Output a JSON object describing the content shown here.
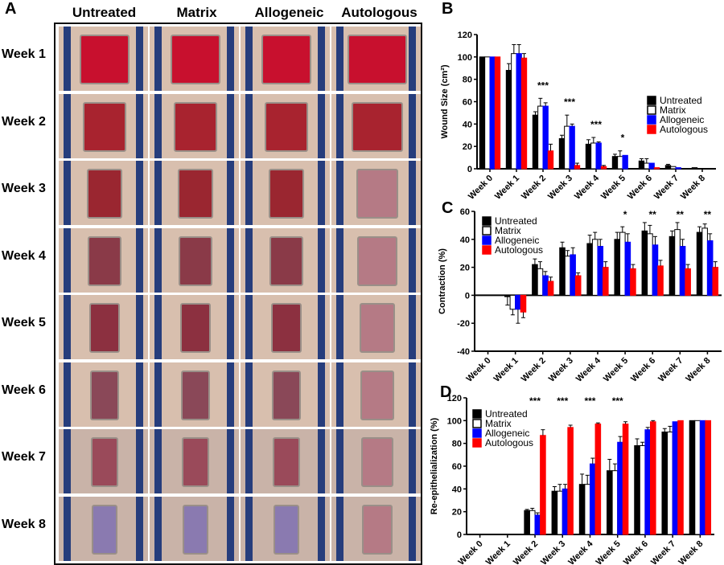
{
  "panels": {
    "a": "A",
    "b": "B",
    "c": "C",
    "d": "D"
  },
  "photo_grid": {
    "columns": [
      "Untreated",
      "Matrix",
      "Allogeneic",
      "Autologous"
    ],
    "rows": [
      "Week 1",
      "Week 2",
      "Week 3",
      "Week 4",
      "Week 5",
      "Week 6",
      "Week 7",
      "Week 8"
    ]
  },
  "chart_data": [
    {
      "id": "B",
      "type": "bar",
      "ylabel": "Wound Size (cm²)",
      "ylim": [
        0,
        120
      ],
      "yticks": [
        0,
        20,
        40,
        60,
        80,
        100,
        120
      ],
      "categories": [
        "Week 0",
        "Week 1",
        "Week 2",
        "Week 3",
        "Week 4",
        "Week 5",
        "Week 6",
        "Week 7",
        "Week 8"
      ],
      "legend": "right",
      "significance": [
        "",
        "",
        "***",
        "***",
        "***",
        "*",
        "",
        "",
        ""
      ],
      "series": [
        {
          "name": "Untreated",
          "color": "#000000",
          "values": [
            100,
            88,
            48,
            27,
            22,
            11,
            7,
            3,
            1
          ],
          "errors": [
            0,
            6,
            3,
            3,
            4,
            2,
            2,
            1,
            0
          ]
        },
        {
          "name": "Matrix",
          "color": "#ffffff",
          "values": [
            100,
            103,
            56,
            38,
            23,
            11,
            5,
            2,
            0
          ],
          "errors": [
            0,
            8,
            7,
            10,
            5,
            5,
            4,
            0,
            0
          ]
        },
        {
          "name": "Allogeneic",
          "color": "#0000ff",
          "values": [
            100,
            103,
            56,
            38,
            23,
            12,
            5,
            1,
            0
          ],
          "errors": [
            0,
            8,
            3,
            2,
            1,
            0,
            0,
            0,
            0
          ]
        },
        {
          "name": "Autologous",
          "color": "#ff0000",
          "values": [
            100,
            99,
            16,
            3,
            2,
            0,
            1,
            0,
            0
          ],
          "errors": [
            0,
            4,
            6,
            2,
            1,
            0,
            0,
            0,
            0
          ]
        }
      ]
    },
    {
      "id": "C",
      "type": "bar",
      "ylabel": "Contraction (%)",
      "ylim": [
        -40,
        60
      ],
      "yticks": [
        -40,
        -20,
        0,
        20,
        40,
        60
      ],
      "categories": [
        "Week 0",
        "Week 1",
        "Week 2",
        "Week 3",
        "Week 4",
        "Week 5",
        "Week 6",
        "Week 7",
        "Week 8"
      ],
      "legend": "top-left",
      "significance": [
        "",
        "",
        "",
        "",
        "",
        "*",
        "**",
        "**",
        "**"
      ],
      "series": [
        {
          "name": "Untreated",
          "color": "#000000",
          "values": [
            0,
            -1,
            22,
            34,
            37,
            40,
            46,
            42,
            45
          ],
          "errors": [
            0,
            6,
            4,
            4,
            6,
            5,
            6,
            4,
            4
          ]
        },
        {
          "name": "Matrix",
          "color": "#ffffff",
          "values": [
            0,
            -10,
            19,
            28,
            40,
            45,
            44,
            47,
            48
          ],
          "errors": [
            0,
            4,
            5,
            4,
            5,
            4,
            6,
            5,
            3
          ]
        },
        {
          "name": "Allogeneic",
          "color": "#0000ff",
          "values": [
            0,
            -10,
            14,
            29,
            35,
            38,
            36,
            35,
            39
          ],
          "errors": [
            0,
            10,
            3,
            5,
            5,
            6,
            6,
            5,
            5
          ]
        },
        {
          "name": "Autologous",
          "color": "#ff0000",
          "values": [
            0,
            -12,
            10,
            14,
            20,
            19,
            21,
            19,
            20
          ],
          "errors": [
            0,
            4,
            3,
            2,
            4,
            3,
            4,
            3,
            4
          ]
        }
      ]
    },
    {
      "id": "D",
      "type": "bar",
      "ylabel": "Re-epithelialization (%)",
      "ylim": [
        0,
        120
      ],
      "yticks": [
        0,
        20,
        40,
        60,
        80,
        100,
        120
      ],
      "categories": [
        "Week 0",
        "Week 1",
        "Week 2",
        "Week 3",
        "Week 4",
        "Week 5",
        "Week 6",
        "Week 7",
        "Week 8"
      ],
      "legend": "top-left",
      "significance": [
        "",
        "",
        "***",
        "***",
        "***",
        "***",
        "",
        "",
        ""
      ],
      "series": [
        {
          "name": "Untreated",
          "color": "#000000",
          "values": [
            0,
            0,
            21,
            38,
            44,
            56,
            78,
            90,
            100
          ],
          "errors": [
            0,
            0,
            1,
            4,
            9,
            10,
            6,
            3,
            0
          ]
        },
        {
          "name": "Matrix",
          "color": "#ffffff",
          "values": [
            0,
            0,
            21,
            38,
            44,
            56,
            78,
            90,
            100
          ],
          "errors": [
            0,
            0,
            2,
            6,
            8,
            6,
            3,
            5,
            0
          ]
        },
        {
          "name": "Allogeneic",
          "color": "#0000ff",
          "values": [
            0,
            0,
            17,
            40,
            62,
            81,
            92,
            99,
            100
          ],
          "errors": [
            0,
            0,
            2,
            4,
            5,
            5,
            2,
            0,
            0
          ]
        },
        {
          "name": "Autologous",
          "color": "#ff0000",
          "values": [
            0,
            0,
            87,
            94,
            97,
            97,
            99,
            100,
            100
          ],
          "errors": [
            0,
            0,
            5,
            2,
            1,
            2,
            1,
            0,
            0
          ]
        }
      ]
    }
  ]
}
